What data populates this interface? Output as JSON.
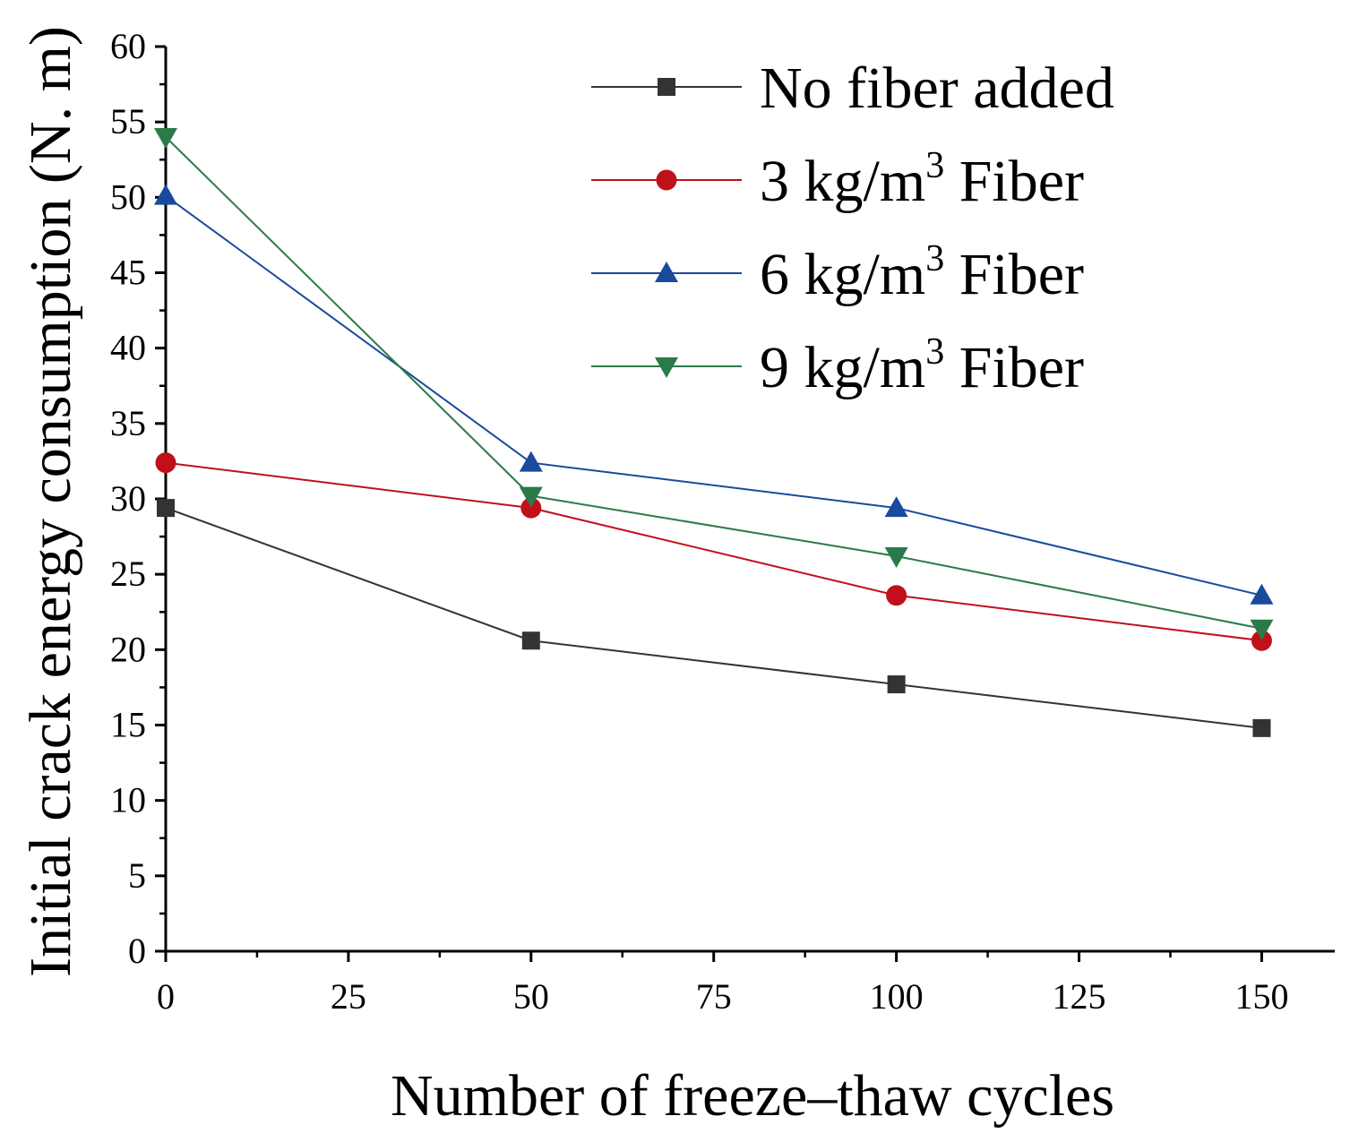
{
  "chart_data": {
    "type": "line",
    "title": "",
    "xlabel": "Number of freeze–thaw cycles",
    "ylabel": "Initial crack energy consumption (N. m)",
    "xlim": [
      0,
      160
    ],
    "ylim": [
      0,
      60
    ],
    "xticks": [
      0,
      25,
      50,
      75,
      100,
      125,
      150
    ],
    "yticks": [
      0,
      5,
      10,
      15,
      20,
      25,
      30,
      35,
      40,
      45,
      50,
      55,
      60
    ],
    "grid": false,
    "legend_position": "top-right",
    "x": [
      0,
      50,
      100,
      150
    ],
    "series": [
      {
        "name": "No fiber added",
        "name_main": "No fiber added",
        "name_sup": "",
        "name_suffix": "",
        "color": "#333333",
        "marker": "square",
        "values": [
          29.4,
          20.6,
          17.7,
          14.8
        ]
      },
      {
        "name": "3 kg/m3 Fiber",
        "name_main": "3 kg/m",
        "name_sup": "3",
        "name_suffix": " Fiber",
        "color": "#c0101a",
        "marker": "circle",
        "values": [
          32.4,
          29.4,
          23.6,
          20.6
        ]
      },
      {
        "name": "6 kg/m3 Fiber",
        "name_main": "6 kg/m",
        "name_sup": "3",
        "name_suffix": " Fiber",
        "color": "#1a4a9c",
        "marker": "triangle-up",
        "values": [
          50.1,
          32.4,
          29.4,
          23.6
        ]
      },
      {
        "name": "9 kg/m3 Fiber",
        "name_main": "9 kg/m",
        "name_sup": "3",
        "name_suffix": " Fiber",
        "color": "#2a7a4a",
        "marker": "triangle-down",
        "values": [
          54.0,
          30.2,
          26.2,
          21.4
        ]
      }
    ]
  }
}
